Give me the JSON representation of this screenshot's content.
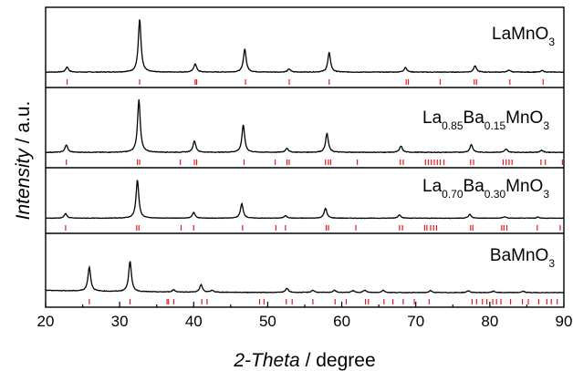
{
  "chart_data": {
    "type": "line",
    "xlabel_italic": "2-Theta",
    "xlabel_unit": " / degree",
    "ylabel_italic": "Intensity",
    "ylabel_unit": " / a.u.",
    "xlim": [
      20,
      90
    ],
    "xticks": [
      20,
      30,
      40,
      50,
      60,
      70,
      80,
      90
    ],
    "grid": false,
    "reference_color": "#e8191c",
    "panels": [
      {
        "label_parts": [
          {
            "text": "LaMnO",
            "sub": false
          },
          {
            "text": "3",
            "sub": true
          }
        ],
        "peaks": [
          [
            22.9,
            0.1
          ],
          [
            32.7,
            1.0
          ],
          [
            40.2,
            0.16
          ],
          [
            46.9,
            0.44
          ],
          [
            52.9,
            0.06
          ],
          [
            58.3,
            0.37
          ],
          [
            68.6,
            0.09
          ],
          [
            78.0,
            0.12
          ],
          [
            82.6,
            0.04
          ],
          [
            87.1,
            0.03
          ]
        ],
        "reference_lines": [
          22.9,
          32.7,
          40.2,
          40.4,
          47.0,
          52.9,
          58.3,
          68.7,
          69.0,
          73.3,
          77.9,
          78.2,
          82.7,
          87.2
        ]
      },
      {
        "label_parts": [
          {
            "text": "La",
            "sub": false
          },
          {
            "text": "0.85",
            "sub": true
          },
          {
            "text": "Ba",
            "sub": false
          },
          {
            "text": "0.15",
            "sub": true
          },
          {
            "text": "MnO",
            "sub": false
          },
          {
            "text": "3",
            "sub": true
          }
        ],
        "peaks": [
          [
            22.8,
            0.14
          ],
          [
            32.6,
            1.0
          ],
          [
            40.1,
            0.22
          ],
          [
            46.7,
            0.52
          ],
          [
            52.6,
            0.08
          ],
          [
            58.0,
            0.36
          ],
          [
            68.0,
            0.12
          ],
          [
            77.5,
            0.15
          ],
          [
            82.2,
            0.06
          ],
          [
            87.0,
            0.04
          ]
        ],
        "reference_lines": [
          22.8,
          32.4,
          32.7,
          38.2,
          40.1,
          40.4,
          46.8,
          51.0,
          52.6,
          52.9,
          57.8,
          58.2,
          58.5,
          62.1,
          67.9,
          68.3,
          71.3,
          71.7,
          72.1,
          72.5,
          72.9,
          73.3,
          73.8,
          77.4,
          77.8,
          81.8,
          82.2,
          82.6,
          83.0,
          86.9,
          87.5,
          89.8
        ]
      },
      {
        "label_parts": [
          {
            "text": "La",
            "sub": false
          },
          {
            "text": "0.70",
            "sub": true
          },
          {
            "text": "Ba",
            "sub": false
          },
          {
            "text": "0.30",
            "sub": true
          },
          {
            "text": "MnO",
            "sub": false
          },
          {
            "text": "3",
            "sub": true
          }
        ],
        "peaks": [
          [
            22.7,
            0.12
          ],
          [
            32.4,
            1.0
          ],
          [
            40.0,
            0.15
          ],
          [
            46.5,
            0.38
          ],
          [
            52.4,
            0.07
          ],
          [
            57.8,
            0.26
          ],
          [
            67.8,
            0.09
          ],
          [
            77.3,
            0.1
          ],
          [
            82.0,
            0.04
          ],
          [
            86.5,
            0.03
          ]
        ],
        "reference_lines": [
          22.7,
          32.3,
          32.6,
          38.3,
          40.0,
          46.6,
          51.1,
          52.4,
          57.9,
          58.2,
          61.9,
          67.8,
          68.2,
          71.2,
          71.5,
          72.0,
          72.4,
          72.8,
          77.4,
          77.7,
          81.6,
          81.9,
          82.3,
          86.4,
          89.5
        ]
      },
      {
        "label_parts": [
          {
            "text": "BaMnO",
            "sub": false
          },
          {
            "text": "3",
            "sub": true
          }
        ],
        "peaks": [
          [
            25.9,
            0.52
          ],
          [
            31.4,
            0.66
          ],
          [
            37.3,
            0.05
          ],
          [
            41.0,
            0.16
          ],
          [
            42.5,
            0.04
          ],
          [
            52.6,
            0.09
          ],
          [
            56.1,
            0.05
          ],
          [
            59.0,
            0.05
          ],
          [
            61.5,
            0.04
          ],
          [
            63.1,
            0.05
          ],
          [
            65.6,
            0.05
          ],
          [
            72.0,
            0.04
          ],
          [
            77.1,
            0.04
          ],
          [
            80.5,
            0.03
          ],
          [
            84.5,
            0.03
          ]
        ],
        "reference_lines": [
          25.9,
          31.4,
          36.4,
          36.6,
          37.3,
          41.1,
          41.8,
          48.9,
          49.5,
          52.5,
          53.3,
          56.1,
          59.1,
          60.6,
          63.2,
          63.6,
          65.7,
          66.9,
          68.3,
          69.8,
          71.8,
          77.6,
          78.2,
          79.0,
          79.6,
          80.4,
          80.9,
          81.5,
          82.8,
          84.4,
          85.2,
          86.6,
          87.7,
          88.3,
          89.1
        ]
      }
    ]
  }
}
